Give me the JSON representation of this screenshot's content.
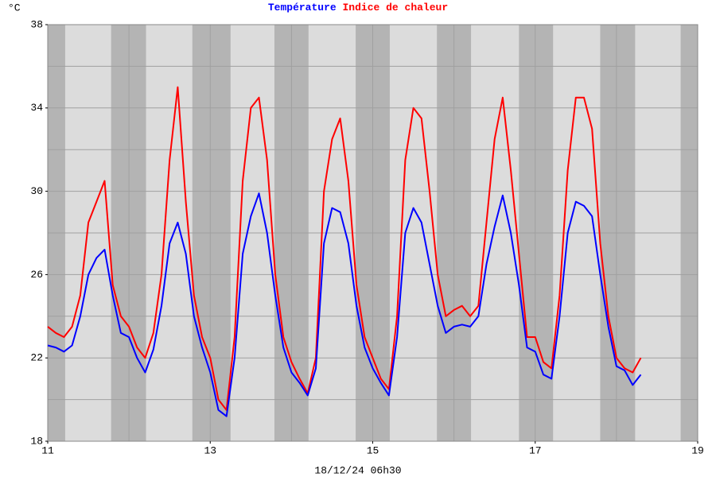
{
  "chart_data": {
    "type": "line",
    "y_label": "°C",
    "x_label": "18/12/24 06h30",
    "x": [
      11.0,
      11.1,
      11.2,
      11.3,
      11.4,
      11.5,
      11.6,
      11.7,
      11.8,
      11.9,
      12.0,
      12.1,
      12.2,
      12.3,
      12.4,
      12.5,
      12.6,
      12.7,
      12.8,
      12.9,
      13.0,
      13.1,
      13.2,
      13.3,
      13.4,
      13.5,
      13.6,
      13.7,
      13.8,
      13.9,
      14.0,
      14.1,
      14.2,
      14.3,
      14.4,
      14.5,
      14.6,
      14.7,
      14.8,
      14.9,
      15.0,
      15.1,
      15.2,
      15.3,
      15.4,
      15.5,
      15.6,
      15.7,
      15.8,
      15.9,
      16.0,
      16.1,
      16.2,
      16.3,
      16.4,
      16.5,
      16.6,
      16.7,
      16.8,
      16.9,
      17.0,
      17.1,
      17.2,
      17.3,
      17.4,
      17.5,
      17.6,
      17.7,
      17.8,
      17.9,
      18.0,
      18.1,
      18.2,
      18.3
    ],
    "series": [
      {
        "name": "Température",
        "color": "#0000ff",
        "values": [
          22.6,
          22.5,
          22.3,
          22.6,
          24.0,
          26.0,
          26.8,
          27.2,
          25.0,
          23.2,
          23.0,
          22.0,
          21.3,
          22.4,
          24.5,
          27.5,
          28.5,
          27.0,
          24.0,
          22.5,
          21.3,
          19.5,
          19.2,
          22.0,
          27.0,
          28.8,
          29.9,
          28.0,
          25.0,
          22.5,
          21.3,
          20.8,
          20.2,
          21.5,
          27.5,
          29.2,
          29.0,
          27.5,
          24.5,
          22.5,
          21.5,
          20.8,
          20.2,
          23.0,
          28.0,
          29.2,
          28.5,
          26.5,
          24.5,
          23.2,
          23.5,
          23.6,
          23.5,
          24.0,
          26.5,
          28.3,
          29.8,
          28.0,
          25.5,
          22.5,
          22.3,
          21.2,
          21.0,
          24.0,
          28.0,
          29.5,
          29.3,
          28.8,
          26.0,
          23.5,
          21.6,
          21.4,
          20.7,
          21.2
        ]
      },
      {
        "name": "Indice de chaleur",
        "color": "#ff0000",
        "values": [
          23.5,
          23.2,
          23.0,
          23.5,
          25.0,
          28.5,
          29.5,
          30.5,
          25.5,
          24.0,
          23.5,
          22.5,
          22.0,
          23.2,
          26.0,
          31.5,
          35.0,
          29.5,
          25.0,
          23.0,
          22.0,
          20.0,
          19.5,
          23.0,
          30.5,
          34.0,
          34.5,
          31.5,
          26.0,
          23.0,
          21.8,
          21.0,
          20.3,
          22.0,
          30.0,
          32.5,
          33.5,
          30.5,
          25.5,
          23.0,
          22.0,
          21.0,
          20.5,
          24.0,
          31.5,
          34.0,
          33.5,
          30.0,
          26.0,
          24.0,
          24.3,
          24.5,
          24.0,
          24.5,
          28.5,
          32.5,
          34.5,
          31.0,
          27.0,
          23.0,
          23.0,
          21.8,
          21.5,
          25.0,
          31.0,
          34.5,
          34.5,
          33.0,
          27.5,
          24.0,
          22.0,
          21.5,
          21.3,
          22.0
        ]
      }
    ],
    "xlim": [
      11,
      19
    ],
    "xticks": [
      11,
      13,
      15,
      17,
      19
    ],
    "xgrid": [
      12,
      13,
      14,
      15,
      16,
      17,
      18
    ],
    "ylim": [
      18,
      38
    ],
    "yticks": [
      18,
      22,
      26,
      30,
      34,
      38
    ],
    "ygrid": [
      20,
      22,
      24,
      26,
      28,
      30,
      32,
      34,
      36
    ],
    "shaded_periods": [
      [
        11.0,
        11.215
      ],
      [
        11.78,
        12.21
      ],
      [
        12.78,
        13.25
      ],
      [
        13.79,
        14.21
      ],
      [
        14.79,
        15.21
      ],
      [
        15.79,
        16.21
      ],
      [
        16.8,
        17.22
      ],
      [
        17.8,
        18.23
      ],
      [
        18.79,
        19.0
      ]
    ],
    "grid": true
  }
}
